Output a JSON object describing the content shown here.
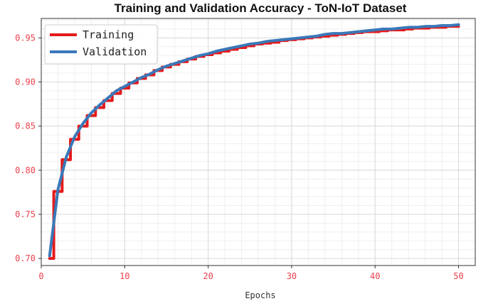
{
  "chart_data": {
    "type": "line",
    "title": "Training and Validation Accuracy - ToN-IoT Dataset",
    "xlabel": "Epochs",
    "ylabel": "",
    "xlim": [
      0,
      52
    ],
    "ylim": [
      0.692,
      0.972
    ],
    "x_ticks": [
      0,
      10,
      20,
      30,
      40,
      50
    ],
    "y_ticks": [
      0.7,
      0.75,
      0.8,
      0.85,
      0.9,
      0.95
    ],
    "grid": true,
    "legend_position": "top-left",
    "series": [
      {
        "name": "Training",
        "color": "#e41a1c",
        "step": true,
        "x": [
          1,
          2,
          3,
          4,
          5,
          6,
          7,
          8,
          9,
          10,
          11,
          12,
          13,
          14,
          15,
          16,
          17,
          18,
          19,
          20,
          21,
          22,
          23,
          24,
          25,
          26,
          27,
          28,
          29,
          30,
          31,
          32,
          33,
          34,
          35,
          36,
          37,
          38,
          39,
          40,
          41,
          42,
          43,
          44,
          45,
          46,
          47,
          48,
          49,
          50
        ],
        "values": [
          0.7,
          0.776,
          0.812,
          0.835,
          0.85,
          0.862,
          0.871,
          0.879,
          0.887,
          0.893,
          0.899,
          0.904,
          0.908,
          0.913,
          0.917,
          0.92,
          0.923,
          0.926,
          0.929,
          0.931,
          0.933,
          0.935,
          0.937,
          0.939,
          0.941,
          0.943,
          0.944,
          0.945,
          0.947,
          0.948,
          0.949,
          0.95,
          0.951,
          0.952,
          0.953,
          0.954,
          0.955,
          0.956,
          0.957,
          0.957,
          0.958,
          0.959,
          0.959,
          0.96,
          0.961,
          0.961,
          0.962,
          0.962,
          0.963,
          0.963
        ]
      },
      {
        "name": "Validation",
        "color": "#3a78b8",
        "step": false,
        "x": [
          1,
          2,
          3,
          4,
          5,
          6,
          7,
          8,
          9,
          10,
          11,
          12,
          13,
          14,
          15,
          16,
          17,
          18,
          19,
          20,
          21,
          22,
          23,
          24,
          25,
          26,
          27,
          28,
          29,
          30,
          31,
          32,
          33,
          34,
          35,
          36,
          37,
          38,
          39,
          40,
          41,
          42,
          43,
          44,
          45,
          46,
          47,
          48,
          49,
          50
        ],
        "values": [
          0.703,
          0.778,
          0.815,
          0.838,
          0.853,
          0.865,
          0.874,
          0.882,
          0.89,
          0.895,
          0.9,
          0.905,
          0.909,
          0.914,
          0.918,
          0.921,
          0.924,
          0.927,
          0.93,
          0.932,
          0.935,
          0.937,
          0.939,
          0.941,
          0.943,
          0.944,
          0.946,
          0.947,
          0.948,
          0.949,
          0.95,
          0.951,
          0.952,
          0.954,
          0.955,
          0.955,
          0.956,
          0.957,
          0.958,
          0.959,
          0.96,
          0.96,
          0.961,
          0.962,
          0.962,
          0.963,
          0.963,
          0.964,
          0.964,
          0.965
        ]
      }
    ]
  }
}
